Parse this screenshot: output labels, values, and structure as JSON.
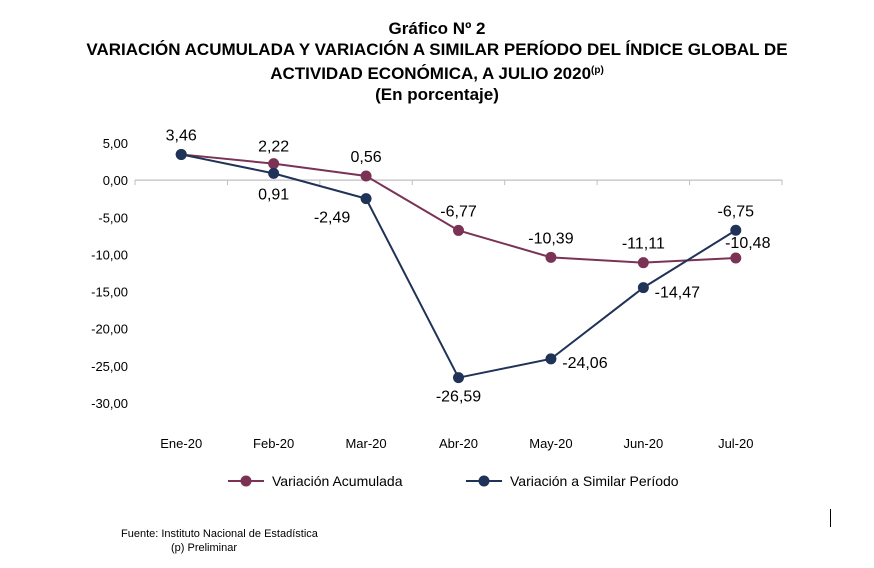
{
  "header": {
    "figure_label": "Gráfico Nº 2",
    "title_line1": "VARIACIÓN ACUMULADA Y VARIACIÓN A SIMILAR PERÍODO DEL ÍNDICE GLOBAL DE",
    "title_line2": "ACTIVIDAD ECONÓMICA, A JULIO 2020",
    "title_superscript": "(p)",
    "subtitle": "(En porcentaje)"
  },
  "footer": {
    "source": "Fuente: Instituto Nacional de Estadística",
    "note": "(p) Preliminar"
  },
  "chart_data": {
    "type": "line",
    "categories": [
      "Ene-20",
      "Feb-20",
      "Mar-20",
      "Abr-20",
      "May-20",
      "Jun-20",
      "Jul-20"
    ],
    "ylim": [
      -30,
      5
    ],
    "yticks": [
      "5,00",
      "0,00",
      "-5,00",
      "-10,00",
      "-15,00",
      "-20,00",
      "-25,00",
      "-30,00"
    ],
    "grid": false,
    "legend_position": "bottom",
    "series": [
      {
        "name": "Variación Acumulada",
        "color": "#7b3355",
        "values": [
          3.46,
          2.22,
          0.56,
          -6.77,
          -10.39,
          -11.11,
          -10.48
        ],
        "labels": [
          "3,46",
          "2,22",
          "0,56",
          "-6,77",
          "-10,39",
          "-11,11",
          "-10,48"
        ]
      },
      {
        "name": "Variación a Similar Período",
        "color": "#1f3257",
        "values": [
          3.46,
          0.91,
          -2.49,
          -26.59,
          -24.06,
          -14.47,
          -6.75
        ],
        "labels": [
          "",
          "0,91",
          "-2,49",
          "-26,59",
          "-24,06",
          "-14,47",
          "-6,75"
        ]
      }
    ]
  }
}
